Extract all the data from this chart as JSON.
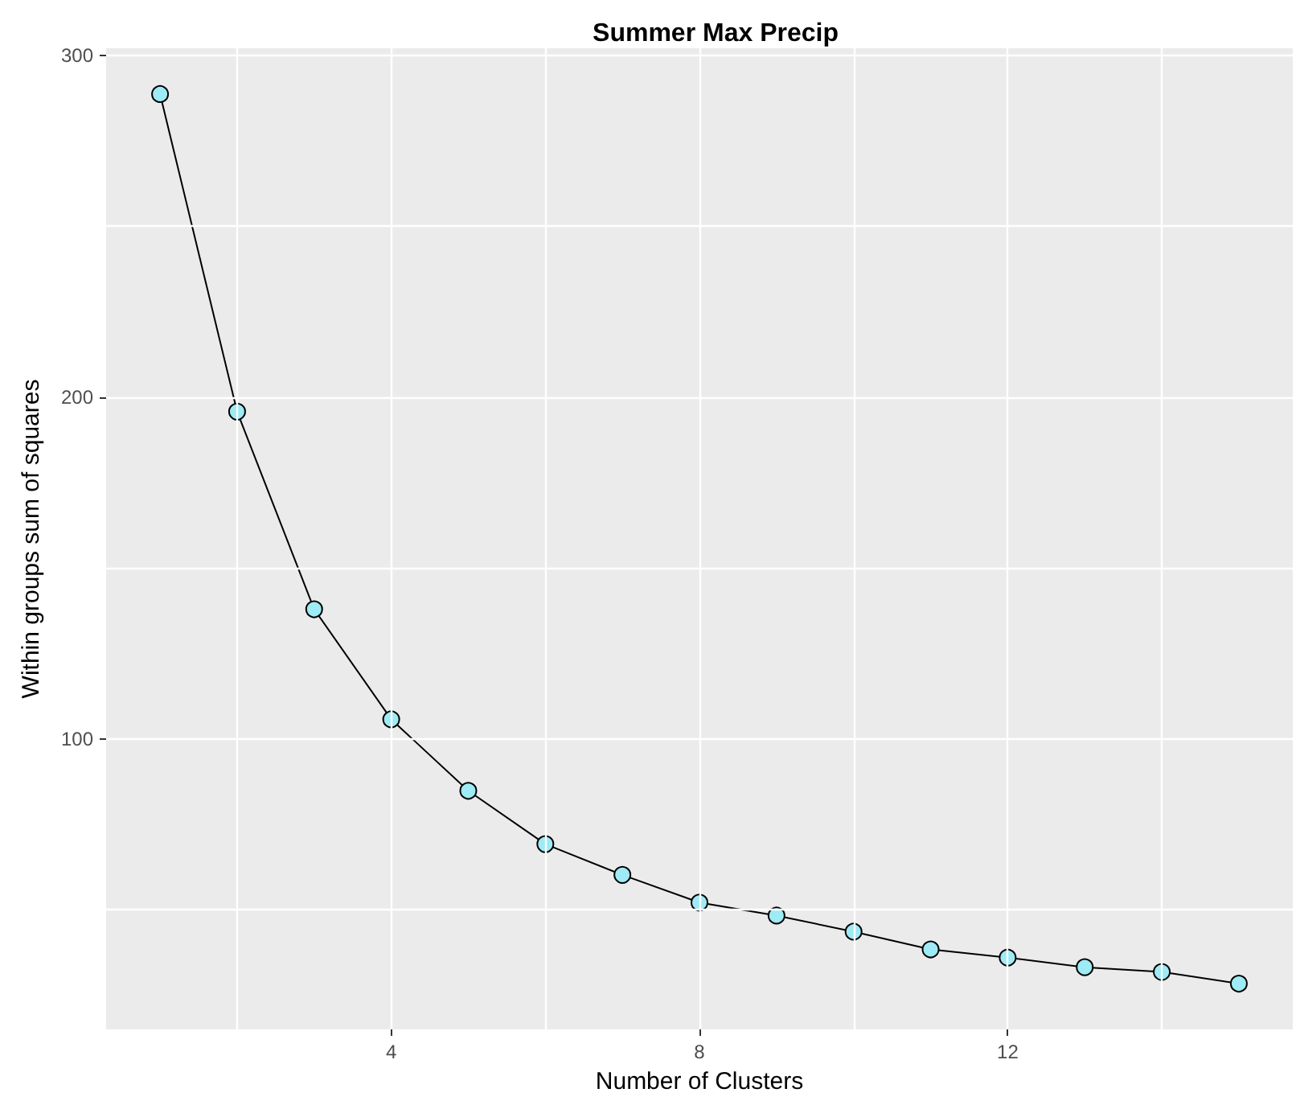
{
  "chart_data": {
    "type": "line",
    "title": "Summer Max Precip",
    "xlabel": "Number of Clusters",
    "ylabel": "Within groups sum of squares",
    "x": [
      1,
      2,
      3,
      4,
      5,
      6,
      7,
      8,
      9,
      10,
      11,
      12,
      13,
      14,
      15
    ],
    "series": [
      {
        "color": "#9eeaf5",
        "values": [
          288.6,
          195.7,
          137.9,
          105.7,
          84.8,
          69.2,
          60.2,
          52.1,
          48.3,
          43.6,
          38.4,
          36.0,
          33.2,
          31.8,
          28.4
        ]
      }
    ],
    "marker": "circle",
    "line_style": "solid",
    "grid": true,
    "xlim": [
      0.3,
      15.7
    ],
    "ylim": [
      15,
      302
    ],
    "xticks": [
      {
        "value": 2,
        "label": null
      },
      4,
      {
        "value": 6,
        "label": null
      },
      8,
      {
        "value": 10,
        "label": null
      },
      12,
      {
        "value": 14,
        "label": null
      }
    ],
    "yticks": [
      {
        "value": 50,
        "label": null
      },
      100,
      {
        "value": 150,
        "label": null
      },
      200,
      {
        "value": 250,
        "label": null
      },
      300
    ]
  }
}
